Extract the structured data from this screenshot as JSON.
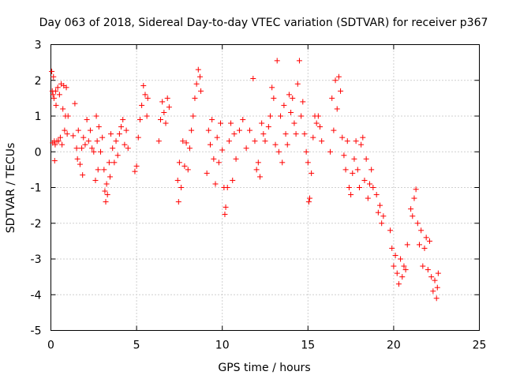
{
  "chart_data": {
    "type": "scatter",
    "title": "Day 063 of 2018, Sidereal Day-to-day VTEC variation (SDTVAR) for receiver p367",
    "xlabel": "GPS time / hours",
    "ylabel": "SDTVAR / TECUs",
    "xlim": [
      0,
      25
    ],
    "ylim": [
      -5,
      3
    ],
    "xticks": [
      "0",
      "5",
      "10",
      "15",
      "20",
      "25"
    ],
    "yticks": [
      "-5",
      "-4",
      "-3",
      "-2",
      "-1",
      "0",
      "1",
      "2",
      "3"
    ],
    "grid": true,
    "marker": "+",
    "color": "#ff0000",
    "series": [
      {
        "name": "SDTVAR",
        "points": [
          [
            0.05,
            2.25
          ],
          [
            0.08,
            1.7
          ],
          [
            0.1,
            0.25
          ],
          [
            0.12,
            1.6
          ],
          [
            0.15,
            2.1
          ],
          [
            0.18,
            1.5
          ],
          [
            0.2,
            0.3
          ],
          [
            0.22,
            -0.25
          ],
          [
            0.25,
            0.2
          ],
          [
            0.28,
            1.7
          ],
          [
            0.3,
            1.3
          ],
          [
            0.35,
            0.3
          ],
          [
            0.4,
            1.8
          ],
          [
            0.45,
            0.3
          ],
          [
            0.5,
            1.6
          ],
          [
            0.55,
            0.4
          ],
          [
            0.6,
            1.9
          ],
          [
            0.65,
            0.2
          ],
          [
            0.7,
            1.2
          ],
          [
            0.75,
            1.85
          ],
          [
            0.8,
            0.6
          ],
          [
            0.85,
            1.0
          ],
          [
            0.9,
            1.8
          ],
          [
            0.95,
            0.5
          ],
          [
            1.0,
            1.0
          ],
          [
            1.3,
            0.45
          ],
          [
            1.4,
            1.35
          ],
          [
            1.5,
            0.1
          ],
          [
            1.55,
            -0.2
          ],
          [
            1.6,
            0.6
          ],
          [
            1.7,
            -0.35
          ],
          [
            1.8,
            0.1
          ],
          [
            1.85,
            -0.65
          ],
          [
            1.9,
            0.4
          ],
          [
            2.0,
            0.2
          ],
          [
            2.1,
            0.9
          ],
          [
            2.2,
            0.3
          ],
          [
            2.3,
            0.6
          ],
          [
            2.4,
            0.1
          ],
          [
            2.5,
            0.0
          ],
          [
            2.6,
            -0.8
          ],
          [
            2.65,
            1.0
          ],
          [
            2.7,
            0.3
          ],
          [
            2.75,
            -0.5
          ],
          [
            2.8,
            0.7
          ],
          [
            2.9,
            0.0
          ],
          [
            3.0,
            0.4
          ],
          [
            3.1,
            -0.5
          ],
          [
            3.15,
            -1.1
          ],
          [
            3.2,
            -1.4
          ],
          [
            3.25,
            -0.9
          ],
          [
            3.3,
            -1.2
          ],
          [
            3.4,
            -0.3
          ],
          [
            3.45,
            -0.7
          ],
          [
            3.5,
            0.5
          ],
          [
            3.6,
            0.1
          ],
          [
            3.7,
            -0.3
          ],
          [
            3.8,
            0.3
          ],
          [
            3.9,
            -0.1
          ],
          [
            4.0,
            0.5
          ],
          [
            4.1,
            0.7
          ],
          [
            4.2,
            0.9
          ],
          [
            4.3,
            0.2
          ],
          [
            4.4,
            0.6
          ],
          [
            4.5,
            0.1
          ],
          [
            4.9,
            -0.55
          ],
          [
            5.0,
            -0.4
          ],
          [
            5.1,
            0.4
          ],
          [
            5.2,
            0.9
          ],
          [
            5.3,
            1.3
          ],
          [
            5.4,
            1.85
          ],
          [
            5.5,
            1.6
          ],
          [
            5.6,
            1.0
          ],
          [
            5.65,
            1.5
          ],
          [
            6.3,
            0.3
          ],
          [
            6.4,
            0.9
          ],
          [
            6.5,
            1.4
          ],
          [
            6.6,
            1.1
          ],
          [
            6.7,
            0.8
          ],
          [
            6.8,
            1.5
          ],
          [
            6.9,
            1.25
          ],
          [
            7.4,
            -0.8
          ],
          [
            7.45,
            -1.4
          ],
          [
            7.5,
            -0.3
          ],
          [
            7.6,
            -1.0
          ],
          [
            7.7,
            0.3
          ],
          [
            7.8,
            -0.4
          ],
          [
            7.9,
            0.25
          ],
          [
            8.0,
            -0.5
          ],
          [
            8.1,
            0.1
          ],
          [
            8.2,
            0.6
          ],
          [
            8.3,
            1.0
          ],
          [
            8.4,
            1.5
          ],
          [
            8.5,
            1.9
          ],
          [
            8.6,
            2.3
          ],
          [
            8.7,
            2.1
          ],
          [
            8.75,
            1.7
          ],
          [
            9.1,
            -0.6
          ],
          [
            9.2,
            0.6
          ],
          [
            9.3,
            0.2
          ],
          [
            9.4,
            0.9
          ],
          [
            9.5,
            -0.2
          ],
          [
            9.6,
            -0.9
          ],
          [
            9.7,
            0.4
          ],
          [
            9.8,
            -0.3
          ],
          [
            9.9,
            0.8
          ],
          [
            10.0,
            0.05
          ],
          [
            10.1,
            -1.0
          ],
          [
            10.15,
            -1.75
          ],
          [
            10.2,
            -1.55
          ],
          [
            10.3,
            -1.0
          ],
          [
            10.4,
            0.3
          ],
          [
            10.5,
            0.8
          ],
          [
            10.6,
            -0.8
          ],
          [
            10.7,
            0.5
          ],
          [
            10.8,
            -0.2
          ],
          [
            11.0,
            0.6
          ],
          [
            11.2,
            0.9
          ],
          [
            11.4,
            0.1
          ],
          [
            11.6,
            0.6
          ],
          [
            11.8,
            2.05
          ],
          [
            11.9,
            0.3
          ],
          [
            12.0,
            -0.5
          ],
          [
            12.1,
            -0.3
          ],
          [
            12.2,
            -0.7
          ],
          [
            12.3,
            0.8
          ],
          [
            12.4,
            0.5
          ],
          [
            12.5,
            0.3
          ],
          [
            12.7,
            0.7
          ],
          [
            12.8,
            1.0
          ],
          [
            12.9,
            1.8
          ],
          [
            13.0,
            1.5
          ],
          [
            13.1,
            0.2
          ],
          [
            13.2,
            2.55
          ],
          [
            13.3,
            0.0
          ],
          [
            13.4,
            1.0
          ],
          [
            13.5,
            -0.3
          ],
          [
            13.6,
            1.3
          ],
          [
            13.7,
            0.5
          ],
          [
            13.8,
            0.2
          ],
          [
            13.9,
            1.6
          ],
          [
            14.0,
            1.1
          ],
          [
            14.1,
            1.5
          ],
          [
            14.2,
            0.8
          ],
          [
            14.3,
            0.5
          ],
          [
            14.4,
            1.9
          ],
          [
            14.5,
            2.55
          ],
          [
            14.6,
            1.0
          ],
          [
            14.7,
            1.4
          ],
          [
            14.8,
            0.5
          ],
          [
            14.9,
            0.0
          ],
          [
            15.0,
            -0.3
          ],
          [
            15.05,
            -1.4
          ],
          [
            15.1,
            -1.3
          ],
          [
            15.2,
            -0.6
          ],
          [
            15.3,
            0.4
          ],
          [
            15.4,
            1.0
          ],
          [
            15.5,
            0.8
          ],
          [
            15.6,
            1.0
          ],
          [
            15.7,
            0.7
          ],
          [
            15.8,
            0.3
          ],
          [
            16.3,
            0.0
          ],
          [
            16.4,
            1.5
          ],
          [
            16.5,
            0.6
          ],
          [
            16.6,
            2.0
          ],
          [
            16.7,
            1.2
          ],
          [
            16.8,
            2.1
          ],
          [
            16.9,
            1.7
          ],
          [
            17.0,
            0.4
          ],
          [
            17.1,
            -0.1
          ],
          [
            17.2,
            -0.5
          ],
          [
            17.3,
            0.3
          ],
          [
            17.4,
            -1.0
          ],
          [
            17.5,
            -1.2
          ],
          [
            17.6,
            -0.6
          ],
          [
            17.7,
            -0.2
          ],
          [
            17.8,
            0.3
          ],
          [
            17.9,
            -0.5
          ],
          [
            18.0,
            -1.0
          ],
          [
            18.1,
            0.2
          ],
          [
            18.2,
            0.4
          ],
          [
            18.3,
            -0.8
          ],
          [
            18.4,
            -0.2
          ],
          [
            18.5,
            -1.3
          ],
          [
            18.6,
            -0.9
          ],
          [
            18.7,
            -0.5
          ],
          [
            18.8,
            -1.0
          ],
          [
            19.0,
            -1.2
          ],
          [
            19.1,
            -1.7
          ],
          [
            19.2,
            -1.5
          ],
          [
            19.3,
            -2.0
          ],
          [
            19.4,
            -1.8
          ],
          [
            19.8,
            -2.2
          ],
          [
            19.9,
            -2.7
          ],
          [
            20.0,
            -3.2
          ],
          [
            20.1,
            -2.9
          ],
          [
            20.2,
            -3.4
          ],
          [
            20.3,
            -3.7
          ],
          [
            20.4,
            -3.0
          ],
          [
            20.5,
            -3.5
          ],
          [
            20.6,
            -3.2
          ],
          [
            20.7,
            -3.3
          ],
          [
            20.8,
            -2.6
          ],
          [
            21.0,
            -1.6
          ],
          [
            21.1,
            -1.8
          ],
          [
            21.2,
            -1.3
          ],
          [
            21.3,
            -1.05
          ],
          [
            21.4,
            -2.0
          ],
          [
            21.5,
            -2.6
          ],
          [
            21.6,
            -2.2
          ],
          [
            21.7,
            -3.2
          ],
          [
            21.8,
            -2.7
          ],
          [
            21.9,
            -2.4
          ],
          [
            22.0,
            -3.3
          ],
          [
            22.1,
            -2.5
          ],
          [
            22.2,
            -3.5
          ],
          [
            22.3,
            -3.9
          ],
          [
            22.4,
            -3.6
          ],
          [
            22.5,
            -4.1
          ],
          [
            22.55,
            -3.8
          ],
          [
            22.6,
            -3.4
          ]
        ]
      }
    ]
  }
}
